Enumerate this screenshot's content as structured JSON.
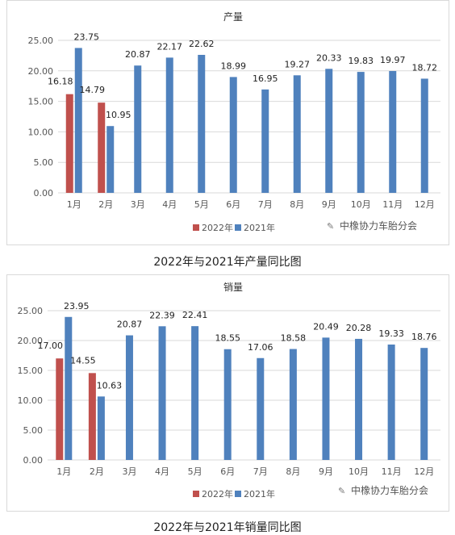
{
  "chart_data": [
    {
      "type": "bar",
      "title": "产量",
      "categories": [
        "1月",
        "2月",
        "3月",
        "4月",
        "5月",
        "6月",
        "7月",
        "8月",
        "9月",
        "10月",
        "11月",
        "12月"
      ],
      "series": [
        {
          "name": "2022年",
          "color": "#c0504d",
          "values": [
            16.18,
            14.79,
            null,
            null,
            null,
            null,
            null,
            null,
            null,
            null,
            null,
            null
          ]
        },
        {
          "name": "2021年",
          "color": "#4f81bd",
          "values": [
            23.75,
            10.95,
            20.87,
            22.17,
            22.62,
            18.99,
            16.95,
            19.27,
            20.33,
            19.83,
            19.97,
            18.72
          ]
        }
      ],
      "yticks": [
        "25.00",
        "20.00",
        "15.00",
        "10.00",
        "5.00",
        "0.00"
      ],
      "ylim": [
        0,
        25
      ],
      "grid": true,
      "legend": "bottom"
    },
    {
      "type": "bar",
      "title": "销量",
      "categories": [
        "1月",
        "2月",
        "3月",
        "4月",
        "5月",
        "6月",
        "7月",
        "8月",
        "9月",
        "10月",
        "11月",
        "12月"
      ],
      "series": [
        {
          "name": "2022年",
          "color": "#c0504d",
          "values": [
            17.0,
            14.55,
            null,
            null,
            null,
            null,
            null,
            null,
            null,
            null,
            null,
            null
          ]
        },
        {
          "name": "2021年",
          "color": "#4f81bd",
          "values": [
            23.95,
            10.63,
            20.87,
            22.39,
            22.41,
            18.55,
            17.06,
            18.58,
            20.49,
            20.28,
            19.33,
            18.76
          ]
        }
      ],
      "yticks": [
        "25.00",
        "20.00",
        "15.00",
        "10.00",
        "5.00",
        "0.00"
      ],
      "ylim": [
        0,
        25
      ],
      "grid": true,
      "legend": "bottom"
    }
  ],
  "captions": [
    "2022年与2021年产量同比图",
    "2022年与2021年销量同比图"
  ],
  "watermark": "中橡协力车胎分会"
}
